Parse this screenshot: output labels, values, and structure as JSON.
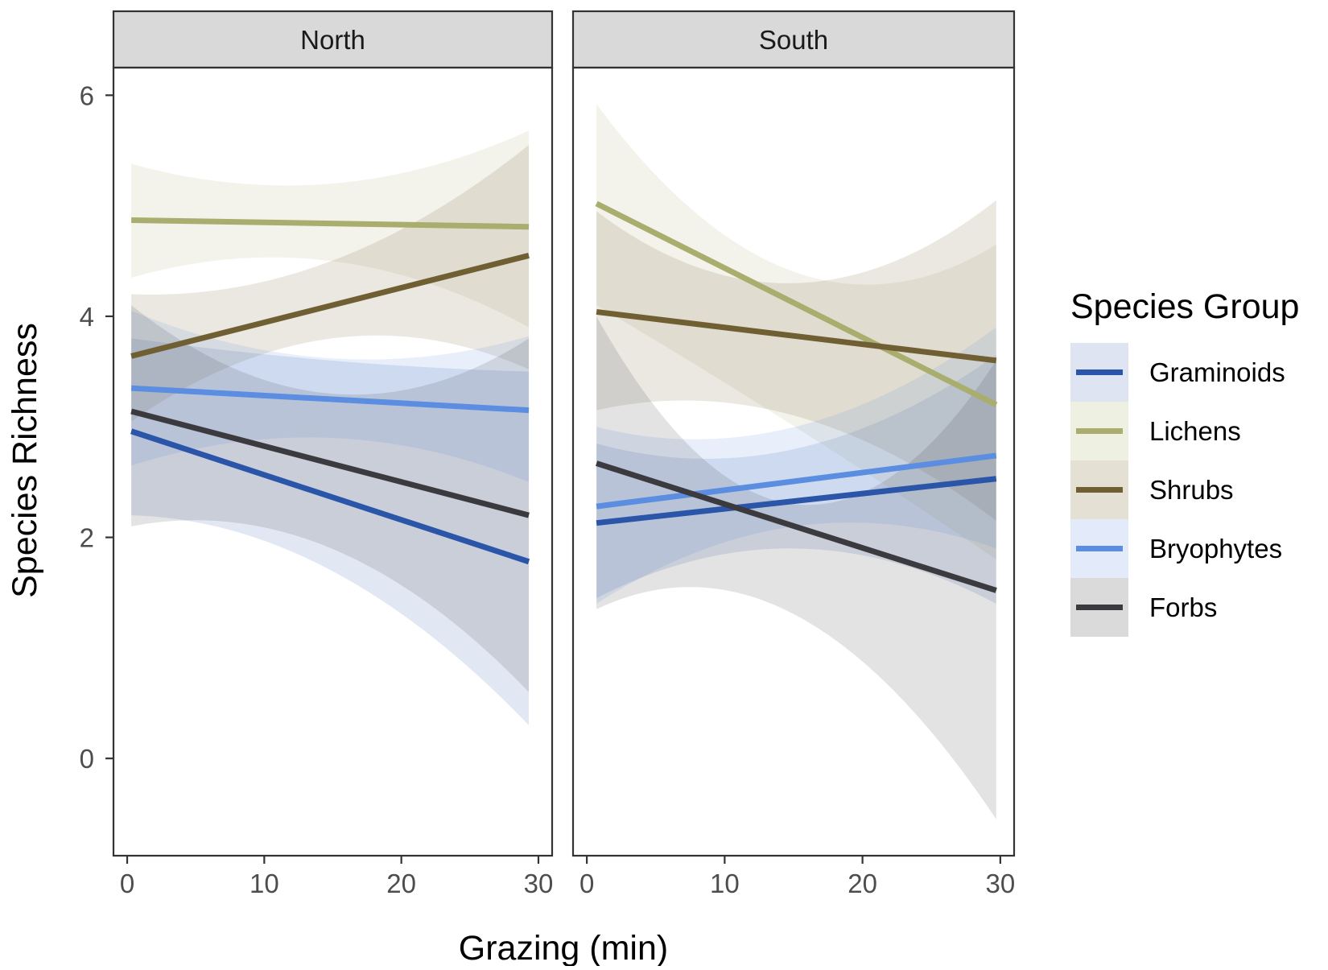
{
  "chart_data": {
    "type": "line",
    "xlabel": "Grazing (min)",
    "ylabel": "Species Richness",
    "xlim": [
      -1,
      31
    ],
    "ylim": [
      -0.88,
      6.25
    ],
    "x_ticks": [
      "0",
      "10",
      "20",
      "30"
    ],
    "y_ticks": [
      "0",
      "2",
      "4",
      "6"
    ],
    "grid": false,
    "legend": {
      "title": "Species Group",
      "position": "right",
      "entries": [
        "Graminoids",
        "Lichens",
        "Shrubs",
        "Bryophytes",
        "Forbs"
      ]
    },
    "colors": {
      "Graminoids": "#2a55a8",
      "Lichens": "#a9ad6e",
      "Shrubs": "#6f5f33",
      "Bryophytes": "#5b8ee0",
      "Forbs": "#3b3b3f"
    },
    "ribbon_colors": {
      "Graminoids": "#dfe4f3",
      "Lichens": "#eef0e1",
      "Shrubs": "#e4e1d4",
      "Bryophytes": "#e3ebfa",
      "Forbs": "#dadada"
    },
    "panels": [
      {
        "name": "North",
        "series": [
          {
            "name": "Graminoids",
            "x": [
              0.3,
              29.3
            ],
            "y": [
              2.96,
              1.78
            ],
            "band_x": [
              0.3,
              15,
              29.3
            ],
            "band_lower": [
              2.2,
              1.7,
              0.3
            ],
            "band_upper": [
              3.8,
              3.6,
              3.5
            ]
          },
          {
            "name": "Lichens",
            "x": [
              0.3,
              29.3
            ],
            "y": [
              4.87,
              4.81
            ],
            "band_x": [
              0.3,
              15,
              29.3
            ],
            "band_lower": [
              4.35,
              4.5,
              3.9
            ],
            "band_upper": [
              5.38,
              5.2,
              5.68
            ]
          },
          {
            "name": "Shrubs",
            "x": [
              0.3,
              29.3
            ],
            "y": [
              3.64,
              4.55
            ],
            "band_x": [
              0.3,
              15,
              29.3
            ],
            "band_lower": [
              3.05,
              3.8,
              3.52
            ],
            "band_upper": [
              4.2,
              4.5,
              5.55
            ]
          },
          {
            "name": "Bryophytes",
            "x": [
              0.3,
              29.3
            ],
            "y": [
              3.35,
              3.15
            ],
            "band_x": [
              0.3,
              15,
              29.3
            ],
            "band_lower": [
              2.65,
              2.9,
              2.5
            ],
            "band_upper": [
              4.05,
              3.62,
              3.82
            ]
          },
          {
            "name": "Forbs",
            "x": [
              0.3,
              29.3
            ],
            "y": [
              3.14,
              2.2
            ],
            "band_x": [
              0.3,
              15,
              29.3
            ],
            "band_lower": [
              2.1,
              1.9,
              0.6
            ],
            "band_upper": [
              4.1,
              3.3,
              3.8
            ]
          }
        ]
      },
      {
        "name": "South",
        "series": [
          {
            "name": "Graminoids",
            "x": [
              0.7,
              29.7
            ],
            "y": [
              2.13,
              2.53
            ],
            "band_x": [
              0.7,
              15,
              29.7
            ],
            "band_lower": [
              1.45,
              1.9,
              1.4
            ],
            "band_upper": [
              2.85,
              2.8,
              3.65
            ]
          },
          {
            "name": "Lichens",
            "x": [
              0.7,
              29.7
            ],
            "y": [
              5.02,
              3.2
            ],
            "band_x": [
              0.7,
              15,
              29.7
            ],
            "band_lower": [
              4.1,
              3.0,
              1.8
            ],
            "band_upper": [
              5.92,
              4.4,
              4.65
            ]
          },
          {
            "name": "Shrubs",
            "x": [
              0.7,
              29.7
            ],
            "y": [
              4.04,
              3.6
            ],
            "band_x": [
              0.7,
              15,
              29.7
            ],
            "band_lower": [
              3.15,
              3.1,
              2.15
            ],
            "band_upper": [
              4.95,
              4.3,
              5.05
            ]
          },
          {
            "name": "Bryophytes",
            "x": [
              0.7,
              29.7
            ],
            "y": [
              2.28,
              2.74
            ],
            "band_x": [
              0.7,
              15,
              29.7
            ],
            "band_lower": [
              1.4,
              2.1,
              1.9
            ],
            "band_upper": [
              3.0,
              3.0,
              3.9
            ]
          },
          {
            "name": "Forbs",
            "x": [
              0.7,
              29.7
            ],
            "y": [
              2.67,
              1.52
            ],
            "band_x": [
              0.7,
              15,
              29.7
            ],
            "band_lower": [
              1.35,
              1.3,
              -0.55
            ],
            "band_upper": [
              4.0,
              2.3,
              3.6
            ]
          }
        ]
      }
    ]
  }
}
